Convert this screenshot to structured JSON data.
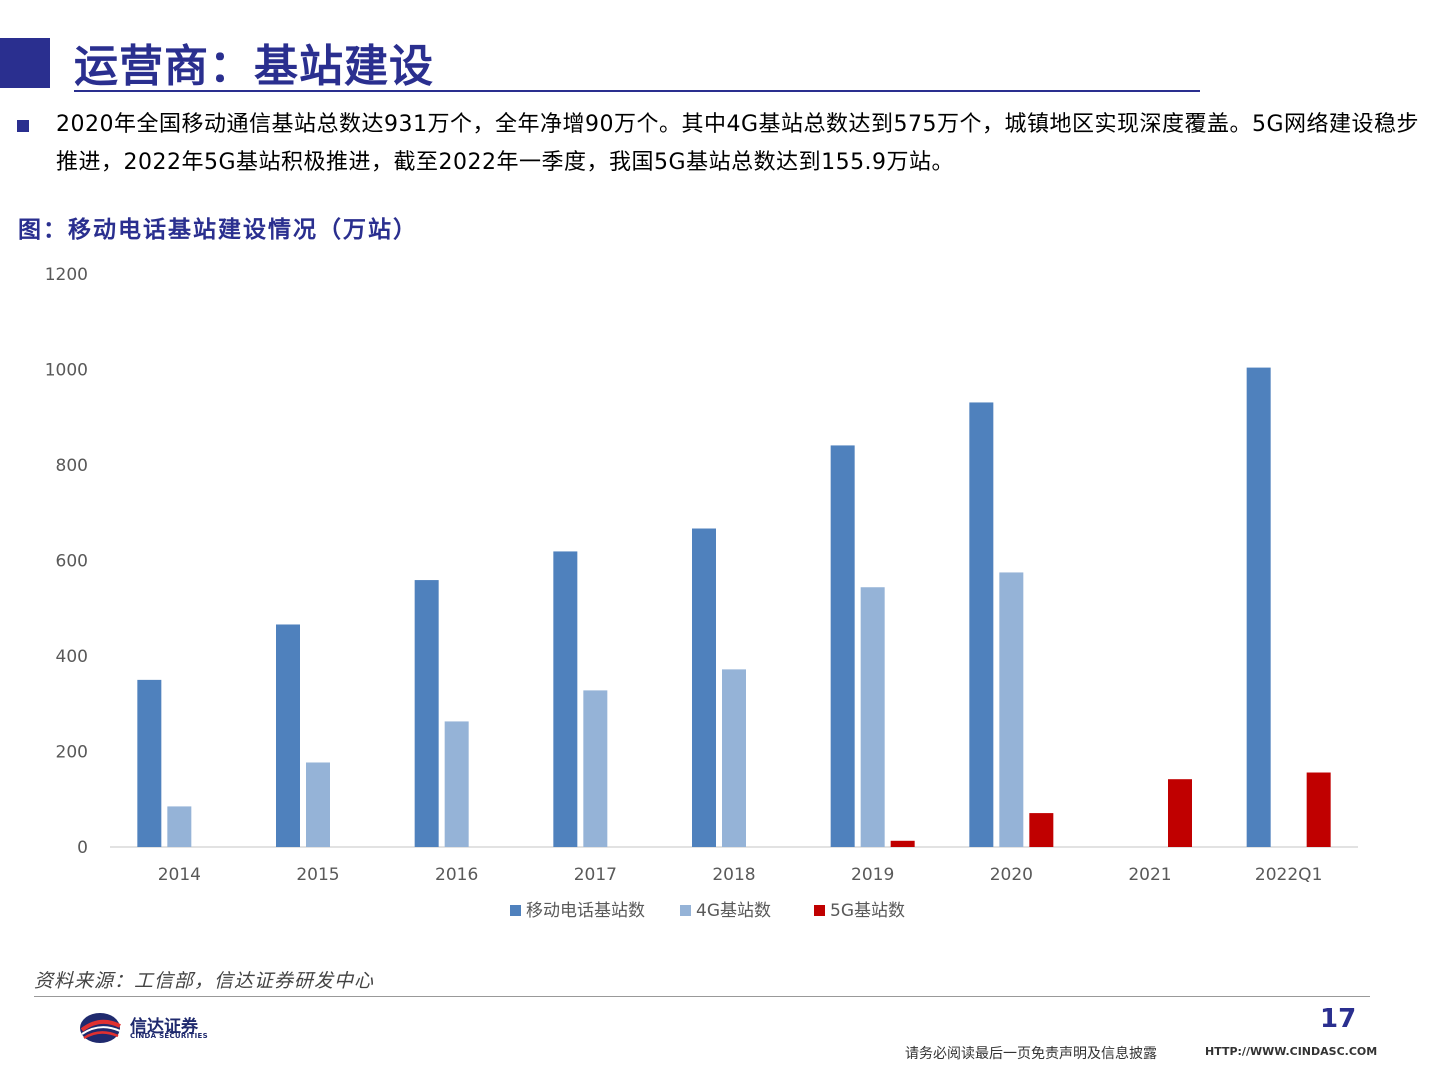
{
  "header": {
    "title": "运营商：基站建设"
  },
  "summary": {
    "text": "2020年全国移动通信基站总数达931万个，全年净增90万个。其中4G基站总数达到575万个，城镇地区实现深度覆盖。5G网络建设稳步推进，2022年5G基站积极推进，截至2022年一季度，我国5G基站总数达到155.9万站。"
  },
  "figure": {
    "title": "图：移动电话基站建设情况（万站）",
    "source": "资料来源：工信部，信达证券研发中心"
  },
  "colors": {
    "brand": "#2a2f8f",
    "series_total": "#4f81bd",
    "series_4g": "#95b3d7",
    "series_5g": "#c00000"
  },
  "chart_data": {
    "type": "bar",
    "title": "",
    "xlabel": "",
    "ylabel": "",
    "ylim": [
      0,
      1200
    ],
    "yticks": [
      0,
      200,
      400,
      600,
      800,
      1000,
      1200
    ],
    "grid": false,
    "legend_position": "bottom-center",
    "categories": [
      "2014",
      "2015",
      "2016",
      "2017",
      "2018",
      "2019",
      "2020",
      "2021",
      "2022Q1"
    ],
    "series": [
      {
        "name": "移动电话基站数",
        "color": "#4f81bd",
        "values": [
          350,
          466,
          559,
          619,
          667,
          841,
          931,
          null,
          1004
        ]
      },
      {
        "name": "4G基站数",
        "color": "#95b3d7",
        "values": [
          85,
          177,
          263,
          328,
          372,
          544,
          575,
          null,
          null
        ]
      },
      {
        "name": "5G基站数",
        "color": "#c00000",
        "values": [
          null,
          null,
          null,
          null,
          null,
          13,
          71,
          142,
          156
        ]
      }
    ]
  },
  "footer": {
    "company_name": "信达证券",
    "company_en": "CINDA SECURITIES",
    "page_number": "17",
    "disclaimer": "请务必阅读最后一页免责声明及信息披露",
    "url": "HTTP://WWW.CINDASC.COM"
  }
}
